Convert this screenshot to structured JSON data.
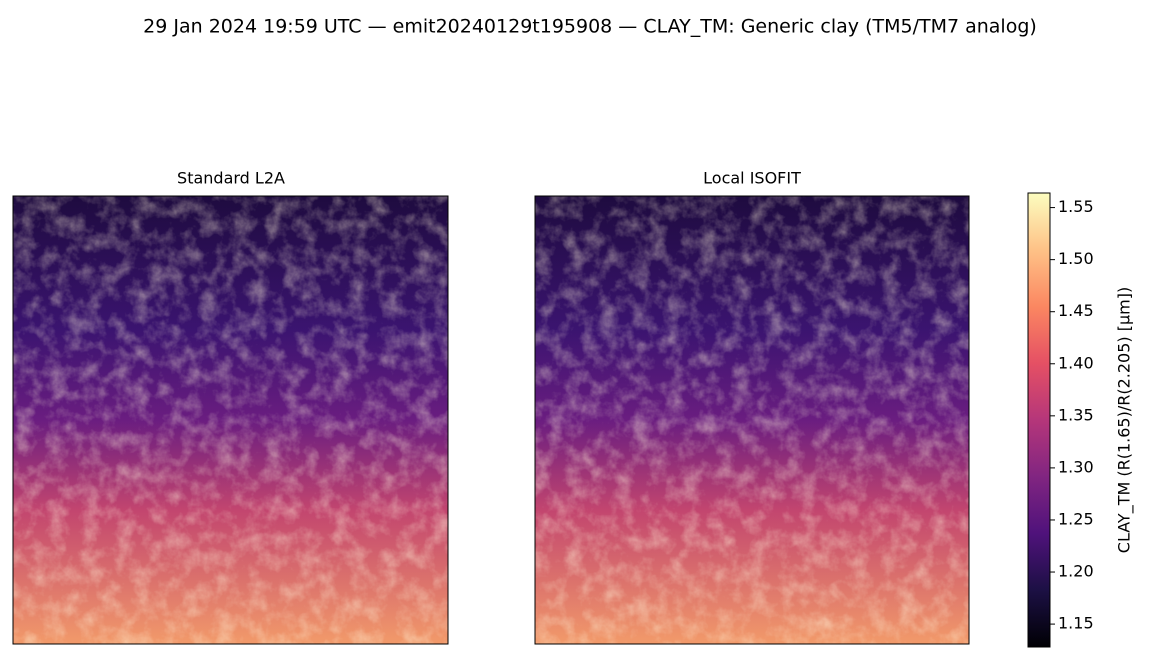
{
  "chart_data": {
    "type": "heatmap",
    "title": "29 Jan 2024 19:59 UTC — emit20240129t195908 — CLAY_TM: Generic clay (TM5/TM7 analog)",
    "panels": [
      {
        "title": "Standard L2A"
      },
      {
        "title": "Local ISOFIT"
      }
    ],
    "colorbar": {
      "label": "CLAY_TM  (R(1.65)/R(2.205)  [µm])",
      "lim": [
        1.128,
        1.564
      ],
      "ticks": [
        1.15,
        {
          "value": 1.2,
          "label": "1.20"
        },
        1.25,
        {
          "value": 1.3,
          "label": "1.30"
        },
        1.35,
        {
          "value": 1.4,
          "label": "1.40"
        },
        1.45,
        {
          "value": 1.5,
          "label": "1.50"
        },
        1.55
      ],
      "colormap": [
        "#000004",
        "#1c1044",
        "#4f127b",
        "#812581",
        "#b5367a",
        "#e55064",
        "#fb8761",
        "#fec287",
        "#fcfdbf"
      ]
    }
  }
}
